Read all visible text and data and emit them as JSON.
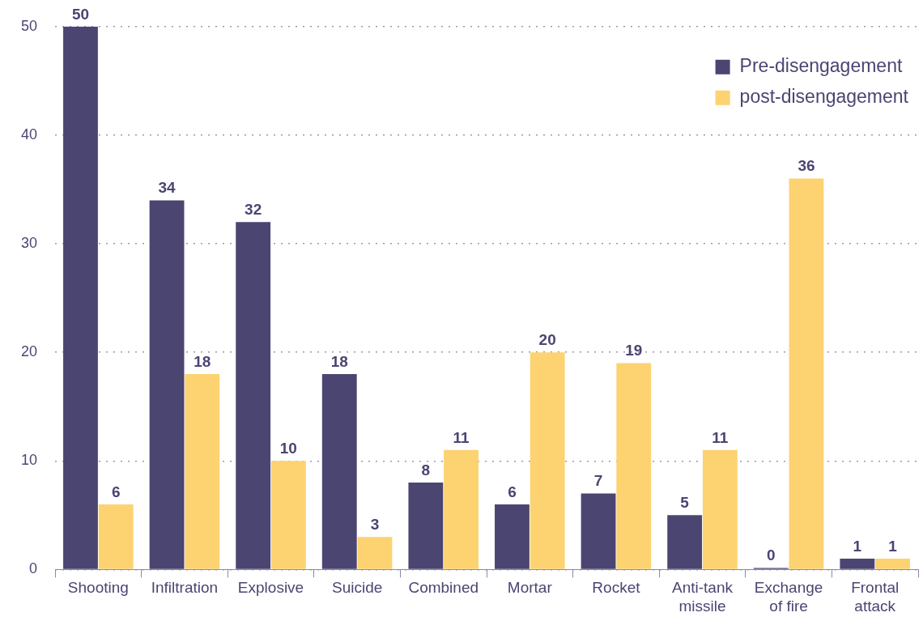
{
  "chart_data": {
    "type": "bar",
    "categories": [
      "Shooting",
      "Infiltration",
      "Explosive",
      "Suicide",
      "Combined",
      "Mortar",
      "Rocket",
      "Anti-tank missile",
      "Exchange of fire",
      "Frontal attack"
    ],
    "series": [
      {
        "name": "Pre-disengagement",
        "color": "#4b4572",
        "values": [
          50,
          34,
          32,
          18,
          8,
          6,
          7,
          5,
          0,
          1
        ]
      },
      {
        "name": "post-disengagement",
        "color": "#fdd271",
        "values": [
          6,
          18,
          10,
          3,
          11,
          20,
          19,
          11,
          36,
          1
        ]
      }
    ],
    "ylim": [
      0,
      50
    ],
    "yticks": [
      0,
      10,
      20,
      30,
      40,
      50
    ],
    "grid": "y",
    "legend": "top right",
    "data_labels": true
  }
}
